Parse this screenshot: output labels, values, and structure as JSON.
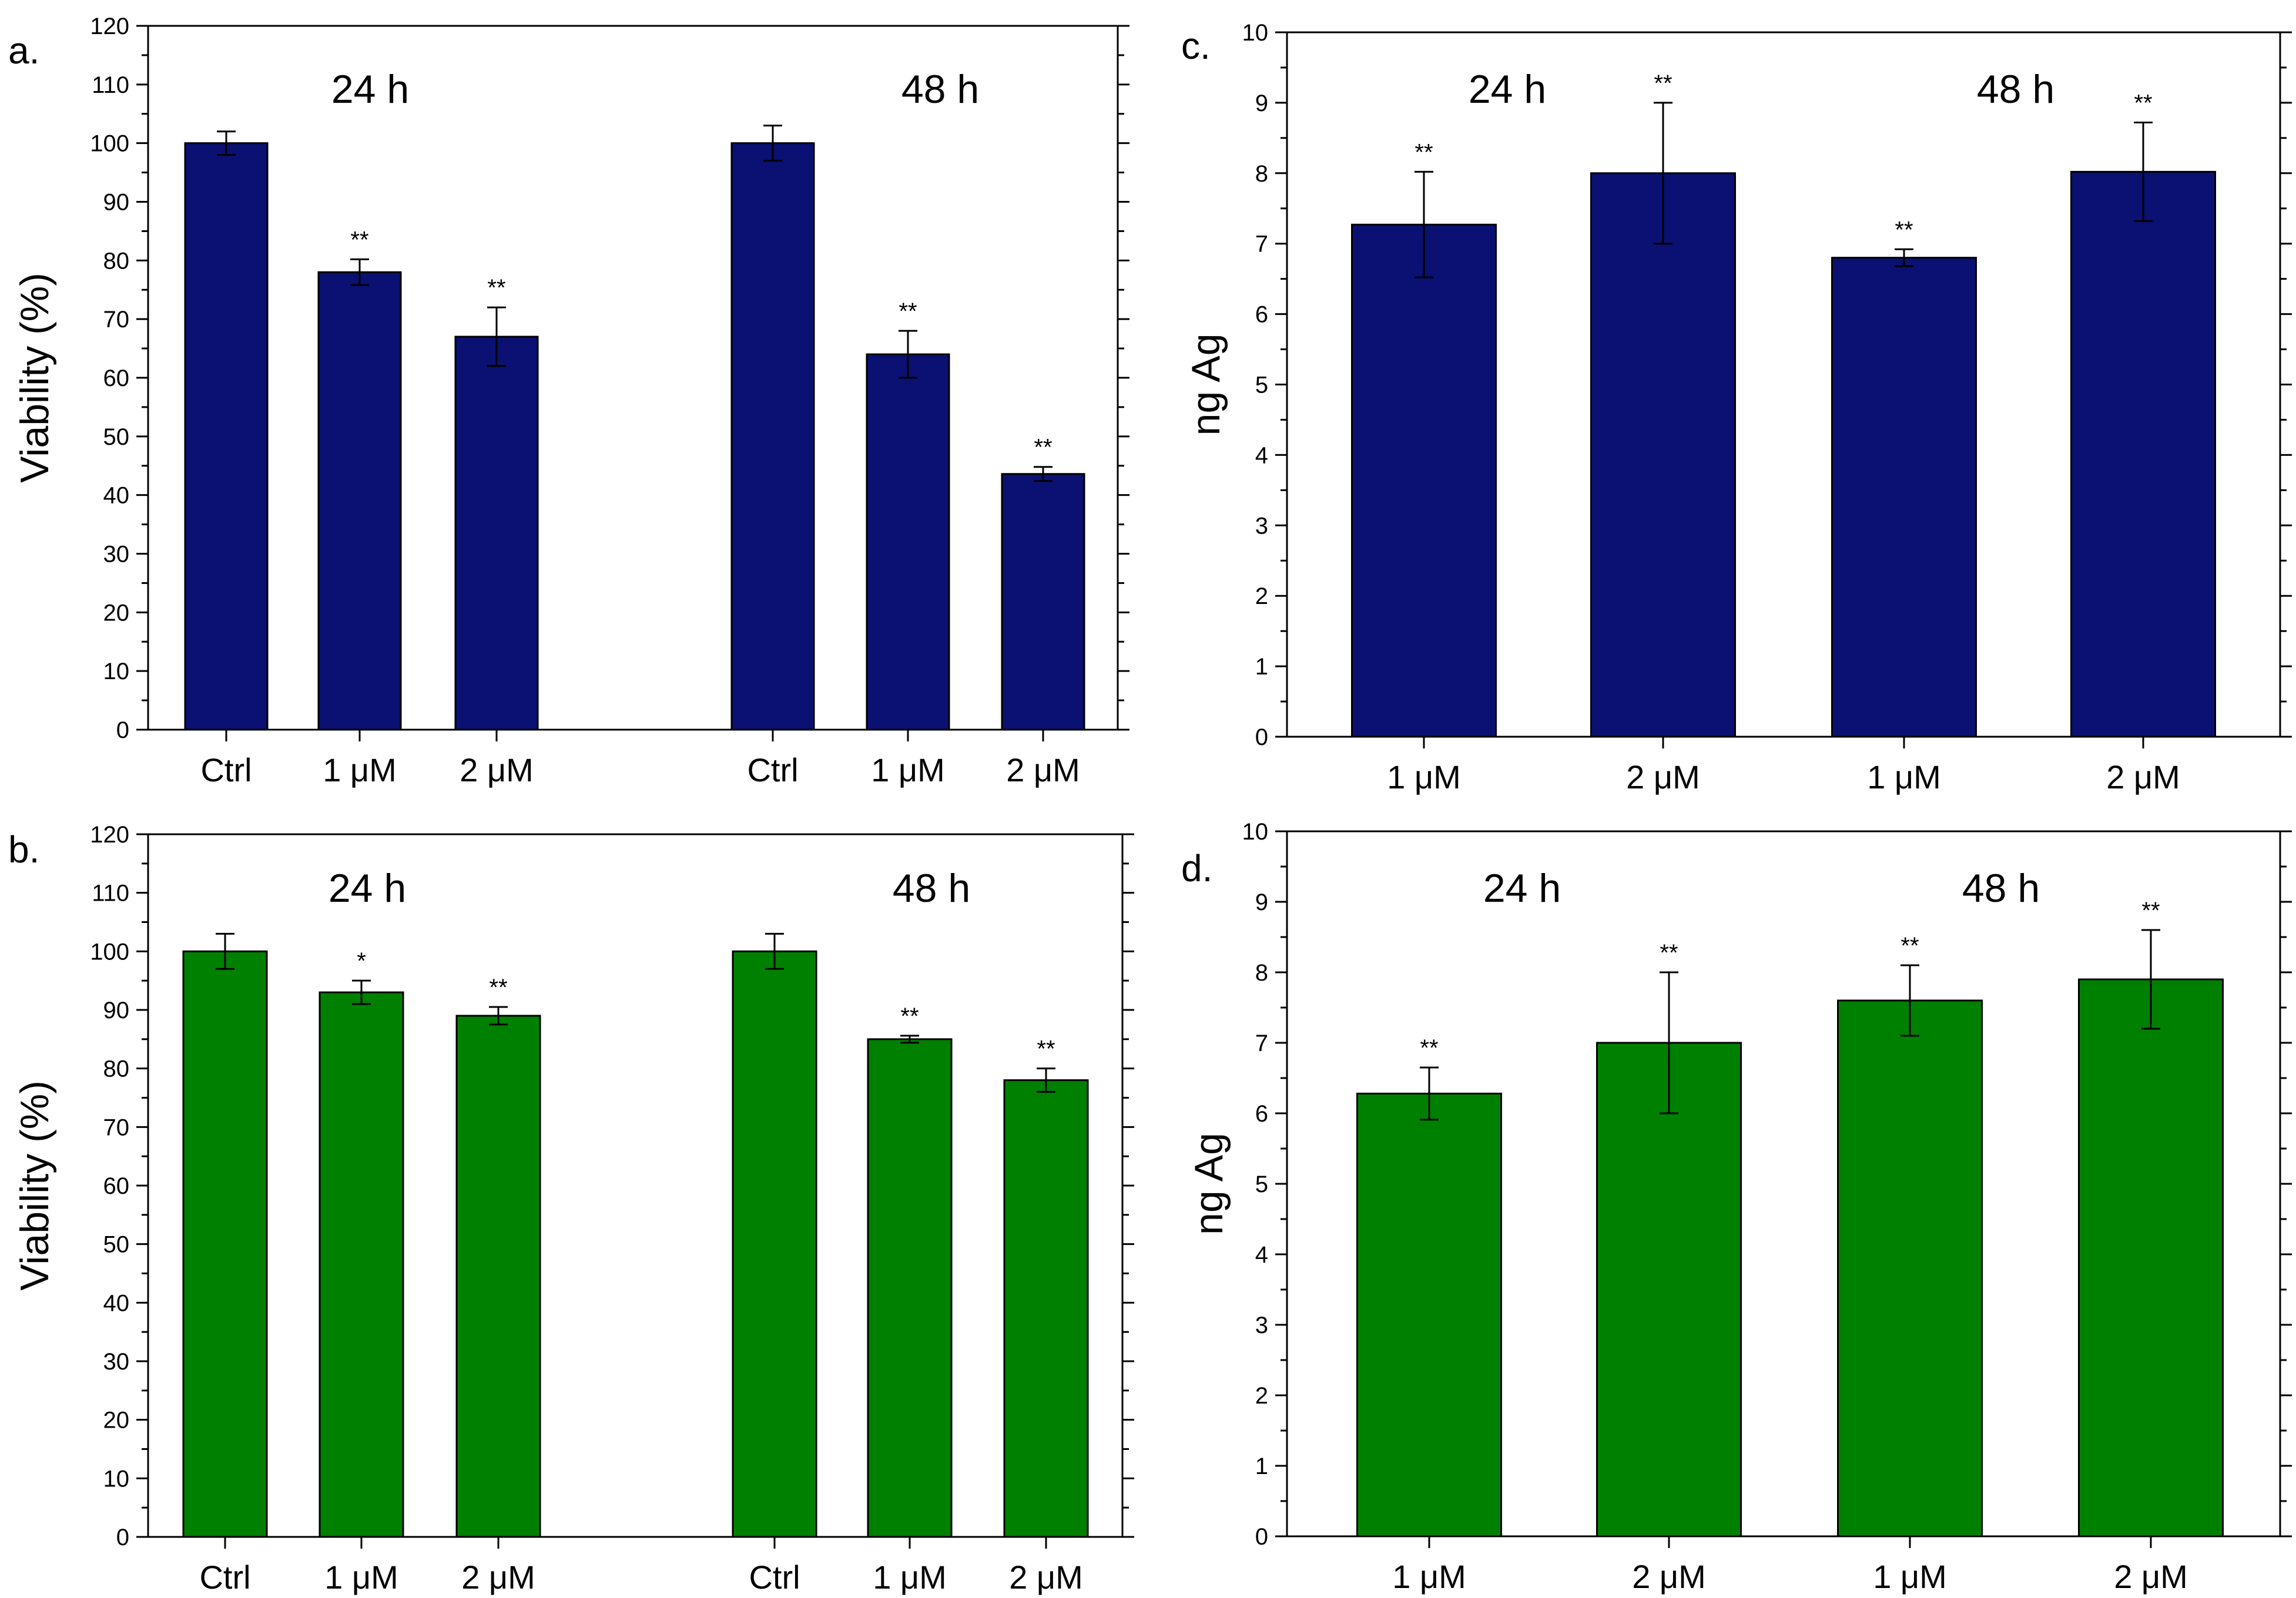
{
  "colors": {
    "navy": "#0a1172",
    "green": "#008000"
  },
  "chart_data": [
    {
      "id": "a",
      "type": "bar",
      "panel_label": "a.",
      "ylabel": "Viability (%)",
      "xlabel": "",
      "ylim": [
        0,
        120
      ],
      "ytick_step": 10,
      "minor_step": 5,
      "color": "navy",
      "categories": [
        "Ctrl",
        "1 μM",
        "2 μM",
        "Ctrl",
        "1 μM",
        "2 μM"
      ],
      "group_gap_after": 2,
      "values": [
        100,
        78,
        67,
        100,
        64,
        43.6
      ],
      "errors": [
        2,
        2.2,
        5,
        3,
        4,
        1.2
      ],
      "significance": [
        "",
        "**",
        "**",
        "",
        "**",
        "**"
      ],
      "period_labels": [
        "24 h",
        "48 h"
      ]
    },
    {
      "id": "b",
      "type": "bar",
      "panel_label": "b.",
      "ylabel": "Viability (%)",
      "xlabel": "",
      "ylim": [
        0,
        120
      ],
      "ytick_step": 10,
      "minor_step": 5,
      "color": "green",
      "categories": [
        "Ctrl",
        "1 μM",
        "2 μM",
        "Ctrl",
        "1 μM",
        "2 μM"
      ],
      "group_gap_after": 2,
      "values": [
        100,
        93,
        89,
        100,
        85,
        78
      ],
      "errors": [
        3,
        2,
        1.5,
        3,
        0.6,
        2
      ],
      "significance": [
        "",
        "*",
        "**",
        "",
        "**",
        "**"
      ],
      "period_labels": [
        "24 h",
        "48 h"
      ]
    },
    {
      "id": "c",
      "type": "bar",
      "panel_label": "c.",
      "ylabel": "ng Ag",
      "xlabel": "",
      "ylim": [
        0,
        10
      ],
      "ytick_step": 1,
      "minor_step": 0.5,
      "color": "navy",
      "categories": [
        "1 μM",
        "2 μM",
        "1 μM",
        "2 μM"
      ],
      "group_gap_after": -1,
      "values": [
        7.27,
        8.0,
        6.8,
        8.02
      ],
      "errors": [
        0.75,
        1.0,
        0.12,
        0.7
      ],
      "significance": [
        "**",
        "**",
        "**",
        "**"
      ],
      "period_labels": [
        "24 h",
        "48 h"
      ]
    },
    {
      "id": "d",
      "type": "bar",
      "panel_label": "d.",
      "ylabel": "ng Ag",
      "xlabel": "",
      "ylim": [
        0,
        10
      ],
      "ytick_step": 1,
      "minor_step": 0.5,
      "color": "green",
      "categories": [
        "1 μM",
        "2 μM",
        "1 μM",
        "2 μM"
      ],
      "group_gap_after": -1,
      "values": [
        6.28,
        7.0,
        7.6,
        7.9
      ],
      "errors": [
        0.37,
        1.0,
        0.5,
        0.7
      ],
      "significance": [
        "**",
        "**",
        "**",
        "**"
      ],
      "period_labels": [
        "24 h",
        "48 h"
      ]
    }
  ]
}
